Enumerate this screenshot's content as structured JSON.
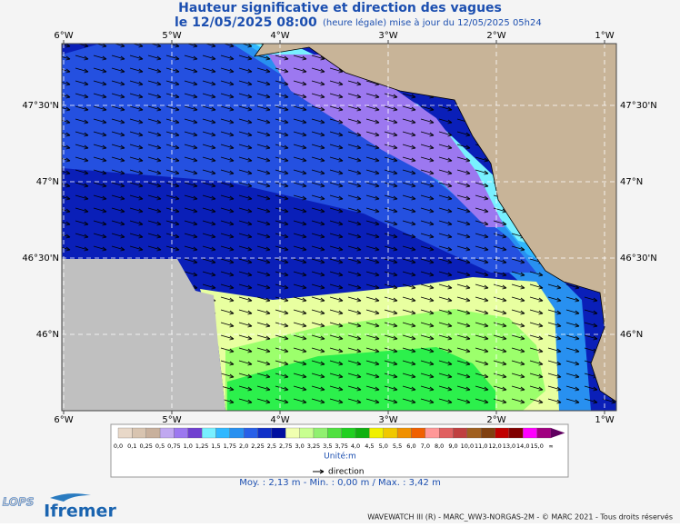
{
  "header": {
    "title": "Hauteur significative et direction des vagues",
    "date": "le 12/05/2025 08:00",
    "update": "(heure légale) mise à jour du 12/05/2025 05h24"
  },
  "map": {
    "lon_labels": [
      "6°W",
      "5°W",
      "4°W",
      "3°W",
      "2°W",
      "1°W"
    ],
    "lat_labels": [
      "47°30'N",
      "47°N",
      "46°30'N",
      "46°N"
    ]
  },
  "legend": {
    "labels": [
      "0,0",
      "0,1",
      "0,25",
      "0,5",
      "0,75",
      "1,0",
      "1,25",
      "1,5",
      "1,75",
      "2,0",
      "2,25",
      "2,5",
      "2,75",
      "3,0",
      "3,25",
      "3,5",
      "3,75",
      "4,0",
      "4,5",
      "5,0",
      "5,5",
      "6,0",
      "7,0",
      "8,0",
      "9,0",
      "10,0",
      "11,0",
      "12,0",
      "13,0",
      "14,0",
      "15,0",
      "∞"
    ],
    "colors": [
      "#e8d8c8",
      "#d8c4b0",
      "#c8b09c",
      "#c0a8f0",
      "#9c78f0",
      "#7040d0",
      "#78f0ff",
      "#30b8ff",
      "#2890f0",
      "#2860e8",
      "#1030c8",
      "#0010a0",
      "#f0ffb0",
      "#c8ff90",
      "#90f070",
      "#50e040",
      "#20d020",
      "#10b010",
      "#f0f000",
      "#f0c800",
      "#f09000",
      "#f06000",
      "#ff9898",
      "#e06060",
      "#c04040",
      "#a06020",
      "#804010",
      "#c00000",
      "#800000",
      "#ff00ff",
      "#a00080",
      "#600060"
    ],
    "unit": "Unité:m",
    "direction": "direction"
  },
  "stats": "Moy. : 2,13 m  -  Min. : 0,00 m / Max. : 3,42 m",
  "footer": {
    "credits": "WAVEWATCH III (R) - MARC_WW3-NORGAS-2M - © MARC 2021 - Tous droits réservés",
    "logos": [
      "LOPS",
      "Ifremer"
    ]
  }
}
